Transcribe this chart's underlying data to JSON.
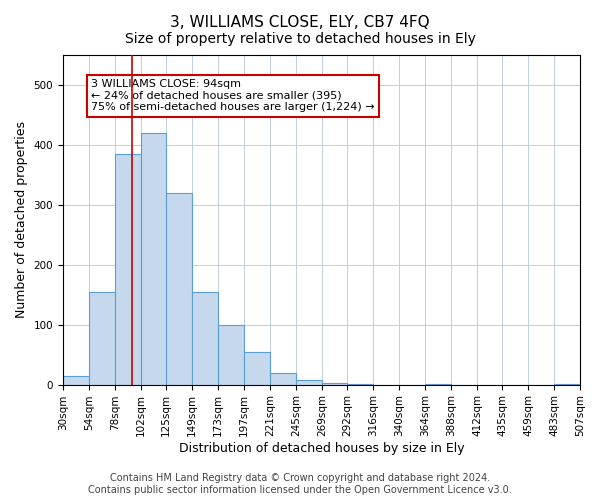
{
  "title": "3, WILLIAMS CLOSE, ELY, CB7 4FQ",
  "subtitle": "Size of property relative to detached houses in Ely",
  "xlabel": "Distribution of detached houses by size in Ely",
  "ylabel": "Number of detached properties",
  "bar_color": "#c5d8ed",
  "bar_edge_color": "#5a9fd4",
  "grid_color": "#c0cfdf",
  "background_color": "#ffffff",
  "vline_x": 94,
  "vline_color": "#cc0000",
  "annotation_text": "3 WILLIAMS CLOSE: 94sqm\n← 24% of detached houses are smaller (395)\n75% of semi-detached houses are larger (1,224) →",
  "annotation_box_edge": "#cc0000",
  "ylim": [
    0,
    550
  ],
  "bin_edges": [
    30,
    54,
    78,
    102,
    125,
    149,
    173,
    197,
    221,
    245,
    269,
    292,
    316,
    340,
    364,
    388,
    412,
    435,
    459,
    483,
    507
  ],
  "bar_heights": [
    15,
    155,
    385,
    420,
    320,
    155,
    100,
    55,
    20,
    8,
    2,
    1,
    0,
    0,
    1,
    0,
    0,
    0,
    0,
    1
  ],
  "tick_labels": [
    "30sqm",
    "54sqm",
    "78sqm",
    "102sqm",
    "125sqm",
    "149sqm",
    "173sqm",
    "197sqm",
    "221sqm",
    "245sqm",
    "269sqm",
    "292sqm",
    "316sqm",
    "340sqm",
    "364sqm",
    "388sqm",
    "412sqm",
    "435sqm",
    "459sqm",
    "483sqm",
    "507sqm"
  ],
  "footer_text": "Contains HM Land Registry data © Crown copyright and database right 2024.\nContains public sector information licensed under the Open Government Licence v3.0.",
  "title_fontsize": 11,
  "subtitle_fontsize": 10,
  "axis_label_fontsize": 9,
  "tick_fontsize": 7.5,
  "footer_fontsize": 7
}
